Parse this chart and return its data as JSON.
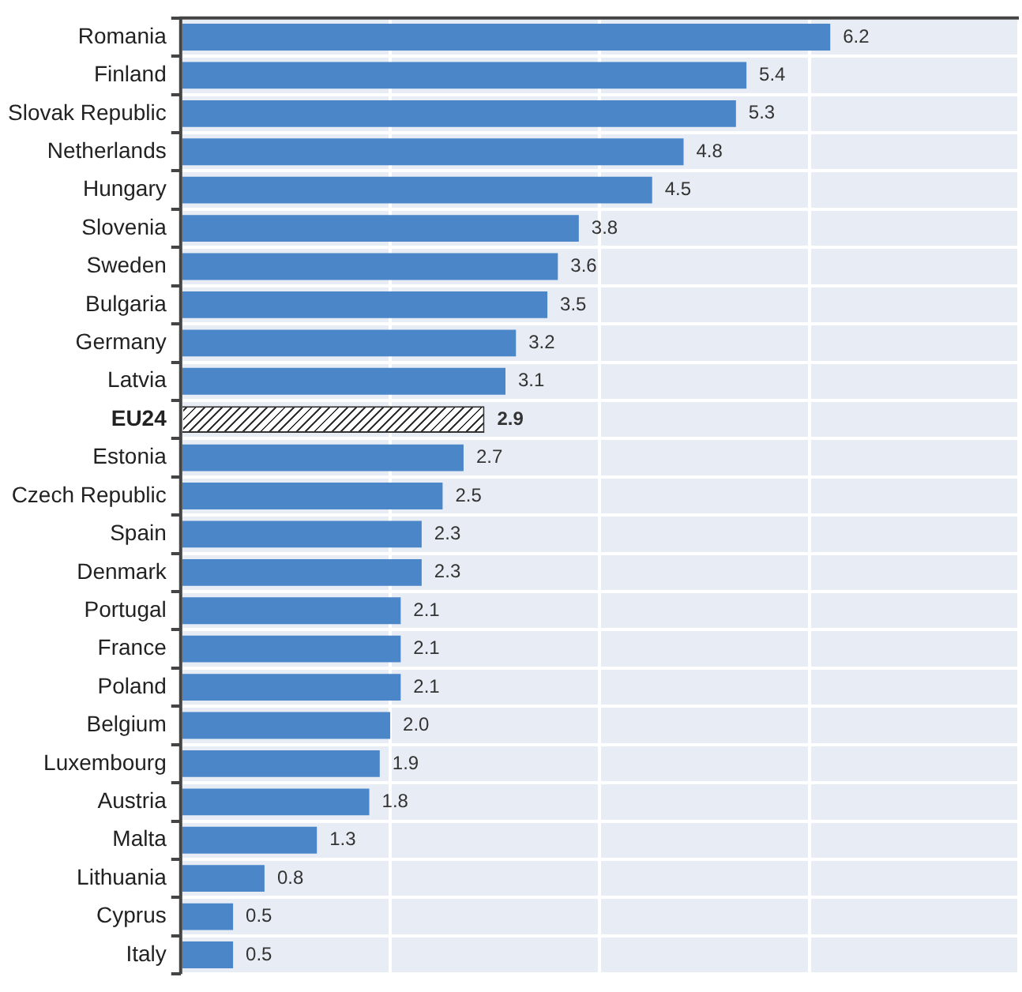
{
  "chart_data": {
    "type": "bar",
    "orientation": "horizontal",
    "categories": [
      "Romania",
      "Finland",
      "Slovak Republic",
      "Netherlands",
      "Hungary",
      "Slovenia",
      "Sweden",
      "Bulgaria",
      "Germany",
      "Latvia",
      "EU24",
      "Estonia",
      "Czech Republic",
      "Spain",
      "Denmark",
      "Portugal",
      "France",
      "Poland",
      "Belgium",
      "Luxembourg",
      "Austria",
      "Malta",
      "Lithuania",
      "Cyprus",
      "Italy"
    ],
    "values": [
      6.2,
      5.4,
      5.3,
      4.8,
      4.5,
      3.8,
      3.6,
      3.5,
      3.2,
      3.1,
      2.9,
      2.7,
      2.5,
      2.3,
      2.3,
      2.1,
      2.1,
      2.1,
      2.0,
      1.9,
      1.8,
      1.3,
      0.8,
      0.5,
      0.5
    ],
    "colors": [
      "#4a86c8",
      "#4a86c8",
      "#4a86c8",
      "#4a86c8",
      "#4a86c8",
      "#4a86c8",
      "#4a86c8",
      "#4a86c8",
      "#4a86c8",
      "#4a86c8",
      "#ffffff",
      "#4a86c8",
      "#4a86c8",
      "#4a86c8",
      "#4a86c8",
      "#4a86c8",
      "#4a86c8",
      "#4a86c8",
      "#4a86c8",
      "#4a86c8",
      "#4a86c8",
      "#4a86c8",
      "#4a86c8",
      "#4a86c8",
      "#4a86c8"
    ],
    "xlim": [
      0,
      8
    ],
    "xticks": [
      {
        "value": 0,
        "label": null
      },
      {
        "value": 2,
        "label": null
      },
      {
        "value": 4,
        "label": null
      },
      {
        "value": 6,
        "label": null
      },
      {
        "value": 8,
        "label": null
      }
    ],
    "value_labels": [
      "6.2",
      "5.4",
      "5.3",
      "4.8",
      "4.5",
      "3.8",
      "3.6",
      "3.5",
      "3.2",
      "3.1",
      "2.9",
      "2.7",
      "2.5",
      "2.3",
      "2.3",
      "2.1",
      "2.1",
      "2.1",
      "2.0",
      "1.9",
      "1.8",
      "1.3",
      "0.8",
      "0.5",
      "0.5"
    ],
    "grid": true,
    "tick_labels": "y",
    "legend": false
  }
}
